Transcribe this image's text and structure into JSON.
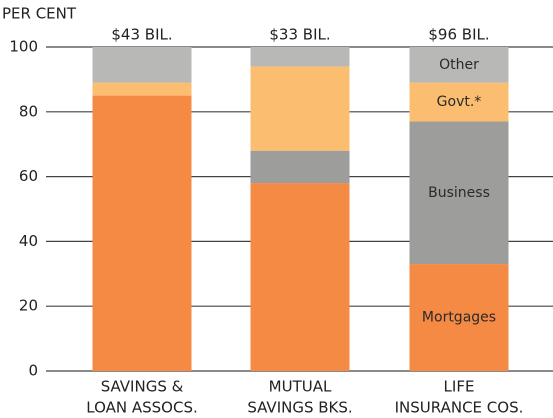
{
  "chart_data": {
    "type": "stacked_bar",
    "y_label": "PER CENT",
    "categories": [
      [
        "SAVINGS &",
        "LOAN ASSOCS."
      ],
      [
        "MUTUAL",
        "SAVINGS BKS."
      ],
      [
        "LIFE",
        "INSURANCE COS."
      ]
    ],
    "totals": [
      "$43 BIL.",
      "$33 BIL.",
      "$96 BIL."
    ],
    "series": [
      {
        "name": "Mortgages",
        "color": "#f58a45",
        "values": [
          85,
          58,
          33
        ]
      },
      {
        "name": "Business",
        "color": "#9d9d9b",
        "values": [
          0,
          10,
          44
        ]
      },
      {
        "name": "Govt.*",
        "color": "#fbbd70",
        "values": [
          4,
          26,
          12
        ]
      },
      {
        "name": "Other",
        "color": "#b8b8b6",
        "values": [
          11,
          6,
          11
        ]
      }
    ],
    "ylim": [
      0,
      100
    ],
    "yticks": [
      0,
      20,
      40,
      60,
      80,
      100
    ],
    "grid": true
  }
}
